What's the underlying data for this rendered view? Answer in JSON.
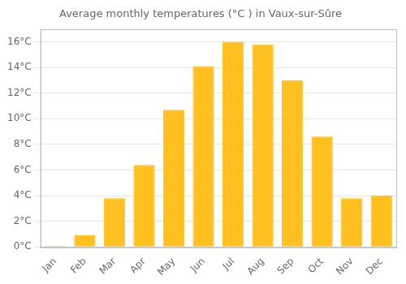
{
  "chart_data": {
    "type": "bar",
    "title": "Average monthly temperatures (°C ) in Vaux-sur-Sûre",
    "categories": [
      "Jan",
      "Feb",
      "Mar",
      "Apr",
      "May",
      "Jun",
      "Jul",
      "Aug",
      "Sep",
      "Oct",
      "Nov",
      "Dec"
    ],
    "values": [
      0.1,
      0.9,
      3.8,
      6.4,
      10.7,
      14.1,
      16.0,
      15.8,
      13.0,
      8.6,
      3.8,
      4.0
    ],
    "color": "#FFC020",
    "ylim": [
      0,
      17
    ],
    "yticks": [
      {
        "value": 0,
        "label": "0°C"
      },
      {
        "value": 2,
        "label": "2°C"
      },
      {
        "value": 4,
        "label": "4°C"
      },
      {
        "value": 6,
        "label": "6°C"
      },
      {
        "value": 8,
        "label": "8°C"
      },
      {
        "value": 10,
        "label": "10°C"
      },
      {
        "value": 12,
        "label": "12°C"
      },
      {
        "value": 14,
        "label": "14°C"
      },
      {
        "value": 16,
        "label": "16°C"
      }
    ],
    "grid": true
  }
}
